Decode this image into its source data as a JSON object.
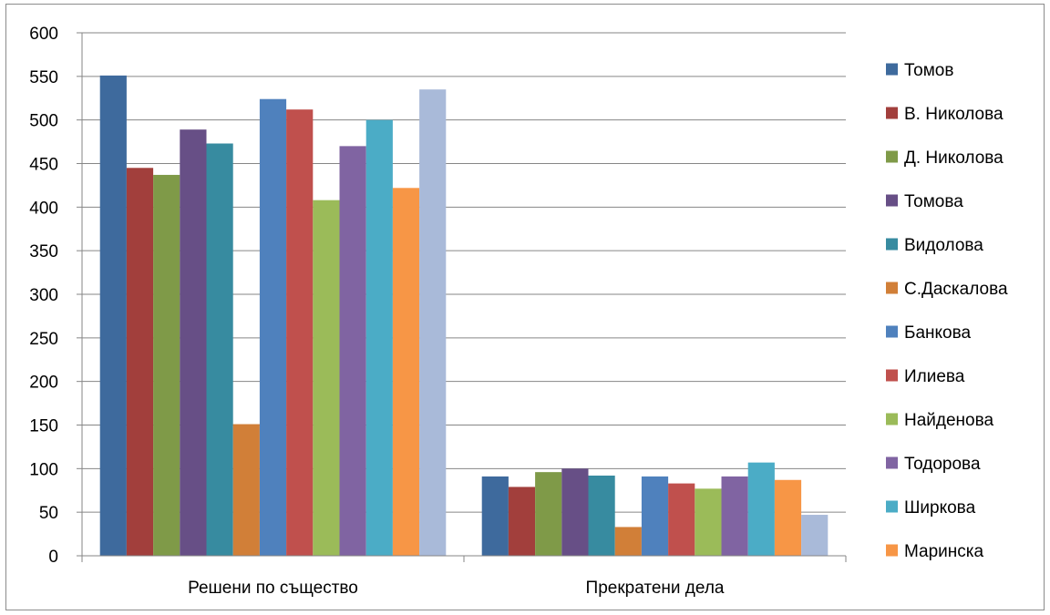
{
  "chart_data": {
    "type": "bar",
    "title": "",
    "xlabel": "",
    "ylabel": "",
    "ylim": [
      0,
      600
    ],
    "yticks": [
      0,
      50,
      100,
      150,
      200,
      250,
      300,
      350,
      400,
      450,
      500,
      550,
      600
    ],
    "grid": true,
    "legend_position": "right",
    "categories": [
      "Решени по същество",
      "Прекратени дела"
    ],
    "series": [
      {
        "name": "Томов",
        "color": "#3e6a9d",
        "values": [
          551,
          91
        ]
      },
      {
        "name": "В. Николова",
        "color": "#a23f3c",
        "values": [
          445,
          79
        ]
      },
      {
        "name": "Д. Николова",
        "color": "#7f9a48",
        "values": [
          437,
          96
        ]
      },
      {
        "name": "Томова",
        "color": "#674f86",
        "values": [
          489,
          100
        ]
      },
      {
        "name": "Видолова",
        "color": "#378ba0",
        "values": [
          473,
          92
        ]
      },
      {
        "name": "С.Даскалова",
        "color": "#d17f38",
        "values": [
          151,
          33
        ]
      },
      {
        "name": "Банкова",
        "color": "#4f81bd",
        "values": [
          524,
          91
        ]
      },
      {
        "name": "Илиева",
        "color": "#c0504d",
        "values": [
          512,
          83
        ]
      },
      {
        "name": "Найденова",
        "color": "#9bbb59",
        "values": [
          408,
          77
        ]
      },
      {
        "name": "Тодорова",
        "color": "#8064a2",
        "values": [
          470,
          91
        ]
      },
      {
        "name": "Ширкова",
        "color": "#4bacc6",
        "values": [
          500,
          107
        ]
      },
      {
        "name": "Маринска",
        "color": "#f79646",
        "values": [
          422,
          87
        ]
      },
      {
        "name": "",
        "color": "#a9bad9",
        "values": [
          535,
          47
        ]
      }
    ]
  }
}
